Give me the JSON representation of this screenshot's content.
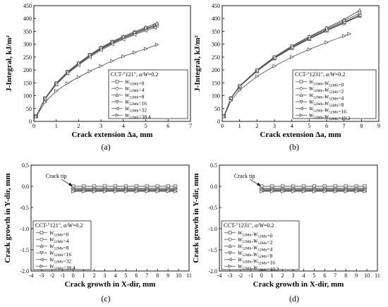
{
  "chart_data": [
    {
      "type": "line",
      "caption": "(a)",
      "xlabel": "Crack extension Δa, mm",
      "ylabel": "J-Integral, kJ/m²",
      "xlim": [
        0,
        7
      ],
      "ylim": [
        0,
        450
      ],
      "xticks": [
        0,
        1,
        2,
        3,
        4,
        5,
        6,
        7
      ],
      "yticks": [
        0,
        50,
        100,
        150,
        200,
        250,
        300,
        350,
        400,
        450
      ],
      "legend_title": "CCT-\"121\", a/W=0.2",
      "legend_position": "bottom-right",
      "grid": false,
      "series": [
        {
          "name": "W52Mb=0",
          "marker": "square",
          "x": [
            0.1,
            0.5,
            1.0,
            1.5,
            2.0,
            2.5,
            3.0,
            3.5,
            4.0,
            4.5,
            5.0,
            5.4
          ],
          "y": [
            20,
            90,
            148,
            192,
            225,
            258,
            285,
            308,
            327,
            345,
            362,
            373
          ]
        },
        {
          "name": "W52Mb=4",
          "marker": "circle",
          "x": [
            0.1,
            0.5,
            1.0,
            1.5,
            2.0,
            2.5,
            3.0,
            3.5,
            4.0,
            4.5,
            5.0,
            5.5
          ],
          "y": [
            20,
            88,
            145,
            188,
            222,
            254,
            281,
            304,
            323,
            341,
            358,
            372
          ]
        },
        {
          "name": "W52Mb=8",
          "marker": "triangle-up",
          "x": [
            0.1,
            0.5,
            1.0,
            1.5,
            2.0,
            2.5,
            3.0,
            3.5,
            4.0,
            4.5,
            5.0,
            5.5
          ],
          "y": [
            20,
            90,
            149,
            193,
            227,
            259,
            287,
            311,
            331,
            349,
            366,
            381
          ]
        },
        {
          "name": "W52Mb=16",
          "marker": "triangle-down",
          "x": [
            0.1,
            0.5,
            1.0,
            1.5,
            2.0,
            2.5,
            3.0,
            3.5,
            4.0,
            4.5,
            5.0,
            5.5
          ],
          "y": [
            20,
            89,
            147,
            190,
            224,
            256,
            283,
            306,
            326,
            344,
            361,
            376
          ]
        },
        {
          "name": "W52Mb=32",
          "marker": "triangle-left",
          "x": [
            0.1,
            0.5,
            1.0,
            1.5,
            2.0,
            2.5,
            3.0,
            3.5,
            4.0,
            4.5,
            5.0,
            5.4
          ],
          "y": [
            20,
            87,
            143,
            186,
            219,
            250,
            277,
            300,
            319,
            337,
            353,
            364
          ]
        },
        {
          "name": "W52Mb=38.4",
          "marker": "triangle-right",
          "x": [
            0.1,
            0.5,
            1.0,
            1.5,
            2.0,
            2.5,
            3.0,
            3.5,
            4.0,
            4.5,
            5.0,
            5.5
          ],
          "y": [
            18,
            75,
            118,
            148,
            172,
            195,
            215,
            235,
            253,
            268,
            282,
            298
          ]
        }
      ]
    },
    {
      "type": "line",
      "caption": "(b)",
      "xlabel": "Crack extension Δa, mm",
      "ylabel": "J-Integral, kJ/m²",
      "xlim": [
        0,
        9
      ],
      "ylim": [
        0,
        450
      ],
      "xticks": [
        0,
        1,
        2,
        3,
        4,
        5,
        6,
        7,
        8,
        9
      ],
      "yticks": [
        0,
        50,
        100,
        150,
        200,
        250,
        300,
        350,
        400,
        450
      ],
      "legend_title": "CCT-\"1231\", a/W=0.2",
      "legend_position": "bottom-right",
      "grid": false,
      "series": [
        {
          "name": "W52Mb-W52Mb=0",
          "marker": "square",
          "x": [
            0.1,
            0.5,
            1.0,
            2.0,
            3.0,
            4.0,
            5.0,
            6.0,
            7.0,
            7.9
          ],
          "y": [
            20,
            90,
            135,
            195,
            245,
            285,
            320,
            352,
            382,
            410
          ]
        },
        {
          "name": "W52Mb-W52Mb=2",
          "marker": "circle",
          "x": [
            0.1,
            0.5,
            1.0,
            2.0,
            3.0,
            4.0,
            5.0,
            6.0,
            7.0,
            7.9
          ],
          "y": [
            20,
            90,
            136,
            197,
            247,
            288,
            323,
            356,
            386,
            413
          ]
        },
        {
          "name": "W52Mb-W52Mb=4",
          "marker": "triangle-up",
          "x": [
            0.1,
            0.5,
            1.0,
            2.0,
            3.0,
            4.0,
            5.0,
            6.0,
            7.0,
            7.9
          ],
          "y": [
            20,
            91,
            138,
            200,
            251,
            293,
            330,
            364,
            396,
            432
          ]
        },
        {
          "name": "W52Mb-W52Mb=8",
          "marker": "triangle-down",
          "x": [
            0.1,
            0.5,
            1.0,
            2.0,
            3.0,
            4.0,
            5.0,
            6.0,
            7.0,
            7.9
          ],
          "y": [
            20,
            90,
            137,
            198,
            249,
            291,
            327,
            360,
            391,
            420
          ]
        },
        {
          "name": "W52Mb-W52Mb=16",
          "marker": "triangle-left",
          "x": [
            0.1,
            0.5,
            1.0,
            2.0,
            3.0,
            4.0,
            5.0,
            6.0,
            7.0,
            7.9
          ],
          "y": [
            20,
            89,
            135,
            196,
            246,
            287,
            322,
            355,
            385,
            412
          ]
        },
        {
          "name": "W52Mb-W52Mb=19.2",
          "marker": "triangle-right",
          "x": [
            0.1,
            0.5,
            1.0,
            2.0,
            3.0,
            4.0,
            5.0,
            6.0,
            7.0,
            7.3
          ],
          "y": [
            18,
            80,
            122,
            175,
            215,
            250,
            280,
            307,
            332,
            340
          ]
        }
      ]
    },
    {
      "type": "line",
      "caption": "(c)",
      "xlabel": "Crack growth in X-dir, mm",
      "ylabel": "Crack growth in Y-dir, mm",
      "xlim": [
        -4,
        11
      ],
      "ylim": [
        -2.0,
        0.5
      ],
      "xticks": [
        -4,
        -3,
        -2,
        -1,
        0,
        1,
        2,
        3,
        4,
        5,
        6,
        7,
        8,
        9,
        10,
        11
      ],
      "yticks": [
        -2.0,
        -1.5,
        -1.0,
        -0.5,
        0.0,
        0.5
      ],
      "ytick_labels": [
        "-2.0",
        "-1.5",
        "-1.0",
        "-0.5",
        "0.0",
        "0.5"
      ],
      "legend_title": "CCT-\"121\", a/W=0.2",
      "legend_position": "bottom-left",
      "annotation": "Crack tip",
      "grid": false,
      "series": [
        {
          "name": "W52Mb=0",
          "marker": "square",
          "x": [
            0,
            1,
            2,
            3,
            4,
            5,
            6,
            7,
            8,
            9,
            9.7
          ],
          "y": [
            0,
            0,
            0,
            0,
            0,
            0,
            0,
            0,
            0,
            0,
            0
          ]
        },
        {
          "name": "W52Mb=4",
          "marker": "circle",
          "x": [
            0,
            1,
            2,
            3,
            4,
            5,
            6,
            7,
            8,
            9,
            9.7
          ],
          "y": [
            -0.05,
            -0.05,
            -0.05,
            -0.05,
            -0.05,
            -0.05,
            -0.05,
            -0.05,
            -0.05,
            -0.05,
            -0.05
          ]
        },
        {
          "name": "W52Mb=8",
          "marker": "triangle-up",
          "x": [
            0,
            1,
            2,
            3,
            4,
            5,
            6,
            7,
            8,
            9,
            9.7
          ],
          "y": [
            -0.07,
            -0.07,
            -0.07,
            -0.07,
            -0.07,
            -0.07,
            -0.07,
            -0.07,
            -0.07,
            -0.07,
            -0.07
          ]
        },
        {
          "name": "W52Mb=16",
          "marker": "triangle-down",
          "x": [
            0,
            1,
            2,
            3,
            4,
            5,
            6,
            7,
            8,
            9,
            9.7
          ],
          "y": [
            -0.09,
            -0.09,
            -0.09,
            -0.09,
            -0.09,
            -0.09,
            -0.09,
            -0.09,
            -0.09,
            -0.09,
            -0.09
          ]
        },
        {
          "name": "W52Mb=32",
          "marker": "triangle-left",
          "x": [
            0,
            1,
            2,
            3,
            4,
            5,
            6,
            7,
            8,
            9,
            9.7
          ],
          "y": [
            -0.1,
            -0.1,
            -0.1,
            -0.1,
            -0.1,
            -0.1,
            -0.1,
            -0.1,
            -0.1,
            -0.1,
            -0.1
          ]
        },
        {
          "name": "W52Mb=38.4",
          "marker": "triangle-right",
          "x": [
            0,
            1,
            2,
            3,
            4,
            5,
            6,
            7,
            8,
            9,
            9.7
          ],
          "y": [
            -0.12,
            -0.12,
            -0.12,
            -0.12,
            -0.12,
            -0.12,
            -0.12,
            -0.12,
            -0.12,
            -0.12,
            -0.12
          ]
        }
      ]
    },
    {
      "type": "line",
      "caption": "(d)",
      "xlabel": "Crack growth in X-dir, mm",
      "ylabel": "Crack growth in Y-dir, mm",
      "xlim": [
        -4,
        11
      ],
      "ylim": [
        -2.0,
        0.5
      ],
      "xticks": [
        -4,
        -3,
        -2,
        -1,
        0,
        1,
        2,
        3,
        4,
        5,
        6,
        7,
        8,
        9,
        10,
        11
      ],
      "yticks": [
        -2.0,
        -1.5,
        -1.0,
        -0.5,
        0.0,
        0.5
      ],
      "ytick_labels": [
        "-2.0",
        "-1.5",
        "-1.0",
        "-0.5",
        "0.0",
        "0.5"
      ],
      "legend_title": "CCT-\"1231\", a/W=0.2",
      "legend_position": "bottom-left",
      "annotation": "Crack tip",
      "grid": false,
      "series": [
        {
          "name": "W52Mb-W52Mb=0",
          "marker": "square",
          "x": [
            0,
            1,
            2,
            3,
            4,
            5,
            6,
            7,
            8,
            9,
            9.8
          ],
          "y": [
            0,
            0,
            0,
            0,
            0,
            0,
            0,
            0,
            0,
            0,
            0
          ]
        },
        {
          "name": "W52Mb-W52Mb=2",
          "marker": "circle",
          "x": [
            0,
            1,
            2,
            3,
            4,
            5,
            6,
            7,
            8,
            9,
            9.8
          ],
          "y": [
            -0.05,
            -0.05,
            -0.05,
            -0.05,
            -0.05,
            -0.05,
            -0.05,
            -0.05,
            -0.05,
            -0.05,
            -0.05
          ]
        },
        {
          "name": "W52Mb-W52Mb=4",
          "marker": "triangle-up",
          "x": [
            0,
            1,
            2,
            3,
            4,
            5,
            6,
            7,
            8,
            9,
            9.8
          ],
          "y": [
            -0.07,
            -0.07,
            -0.07,
            -0.07,
            -0.07,
            -0.07,
            -0.07,
            -0.07,
            -0.07,
            -0.07,
            -0.07
          ]
        },
        {
          "name": "W52Mb-W52Mb=8",
          "marker": "triangle-down",
          "x": [
            0,
            1,
            2,
            3,
            4,
            5,
            6,
            7,
            8,
            9,
            9.8
          ],
          "y": [
            -0.09,
            -0.09,
            -0.09,
            -0.09,
            -0.09,
            -0.09,
            -0.09,
            -0.09,
            -0.09,
            -0.09,
            -0.09
          ]
        },
        {
          "name": "W52Mb-W52Mb=16",
          "marker": "triangle-left",
          "x": [
            0,
            1,
            2,
            3,
            4,
            5,
            6,
            7,
            8,
            9,
            9.8
          ],
          "y": [
            -0.1,
            -0.1,
            -0.1,
            -0.1,
            -0.1,
            -0.1,
            -0.1,
            -0.1,
            -0.1,
            -0.1,
            -0.1
          ]
        },
        {
          "name": "W52Mb-W52Mb=19.2",
          "marker": "triangle-right",
          "x": [
            0,
            1,
            2,
            3,
            4,
            5,
            6,
            7,
            8,
            9,
            9.8
          ],
          "y": [
            -0.12,
            -0.12,
            -0.12,
            -0.12,
            -0.12,
            -0.12,
            -0.12,
            -0.12,
            -0.12,
            -0.12,
            -0.12
          ]
        }
      ]
    }
  ],
  "colors": {
    "line": "#555555",
    "axis": "#000000",
    "background": "#ffffff"
  }
}
